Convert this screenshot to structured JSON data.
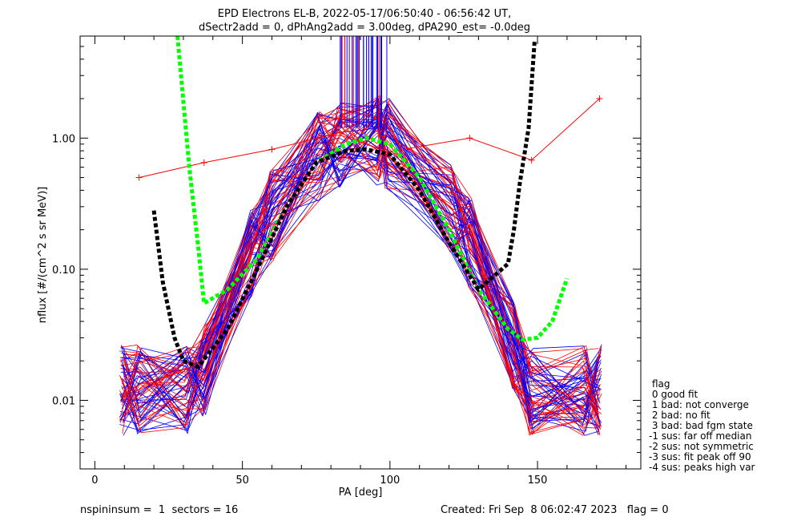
{
  "chart_data": {
    "type": "line",
    "title_line1": "EPD Electrons EL-B, 2022-05-17/06:50:40 - 06:56:42 UT,",
    "title_line2": "dSectr2add = 0, dPhAng2add = 3.00deg, dPA290_est=  -0.0deg",
    "xlabel": "PA [deg]",
    "ylabel": "nflux [#/(cm^2 s sr MeV)]",
    "xlim": [
      -5,
      185
    ],
    "ylim": [
      0.003,
      6
    ],
    "yscale": "log",
    "xticks": [
      "0",
      "50",
      "100",
      "150"
    ],
    "yticks": [
      "0.01",
      "0.10",
      "1.00"
    ],
    "series": [
      {
        "color": "#ff0000",
        "marker": "+",
        "x": [
          15,
          37,
          60,
          83,
          99,
          127,
          148,
          171
        ],
        "y": [
          0.5,
          0.65,
          0.82,
          1.1,
          0.78,
          1.0,
          0.68,
          2.0
        ]
      },
      {
        "color": "#00ff00",
        "style": "dashed",
        "x": [
          28,
          32,
          35,
          37,
          45,
          55,
          65,
          75,
          85,
          92,
          100,
          110,
          120,
          130,
          140,
          145,
          150,
          155,
          160
        ],
        "y": [
          6,
          0.6,
          0.15,
          0.055,
          0.07,
          0.12,
          0.3,
          0.65,
          0.9,
          1.0,
          0.9,
          0.5,
          0.2,
          0.07,
          0.035,
          0.029,
          0.03,
          0.04,
          0.085
        ]
      },
      {
        "color": "#000000",
        "style": "dashed",
        "x": [
          20,
          23,
          27,
          30,
          35,
          45,
          55,
          65,
          75,
          85,
          92,
          100,
          110,
          120,
          130,
          140,
          142,
          144,
          147,
          149
        ],
        "y": [
          0.28,
          0.08,
          0.03,
          0.02,
          0.018,
          0.035,
          0.1,
          0.3,
          0.65,
          0.8,
          0.82,
          0.75,
          0.4,
          0.16,
          0.07,
          0.11,
          0.2,
          0.45,
          1.2,
          5.5
        ]
      }
    ],
    "legend": {
      "title": "flag",
      "items": [
        " 0 good fit",
        " 1 bad: not converge",
        " 2 bad: no fit",
        " 3 bad: bad fgm state",
        "-1 sus: far off median",
        "-2 sus: not symmetric",
        "-3 sus: fit peak off 90",
        "-4 sus: peaks high var"
      ]
    }
  },
  "footer": {
    "left": "nspininsum =  1  sectors = 16",
    "right": "Created: Fri Sep  8 06:02:47 2023   flag = 0"
  },
  "colors": {
    "red": "#ff0000",
    "blue": "#0000ff",
    "green": "#00ff00",
    "black": "#000000"
  }
}
